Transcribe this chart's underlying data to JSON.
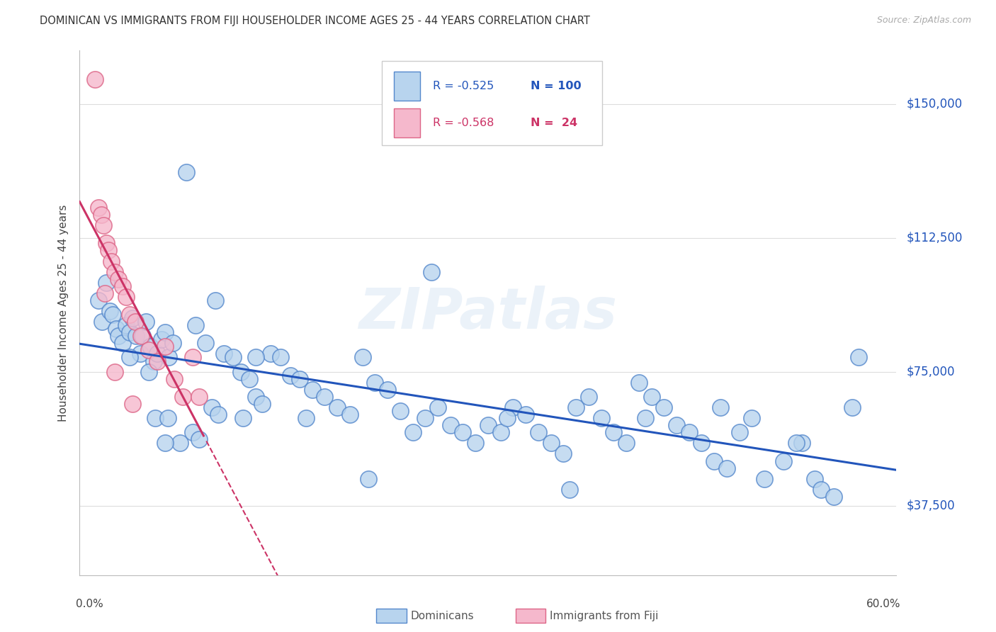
{
  "title": "DOMINICAN VS IMMIGRANTS FROM FIJI HOUSEHOLDER INCOME AGES 25 - 44 YEARS CORRELATION CHART",
  "source": "Source: ZipAtlas.com",
  "ylabel": "Householder Income Ages 25 - 44 years",
  "ytick_values": [
    37500,
    75000,
    112500,
    150000
  ],
  "ytick_labels": [
    "$37,500",
    "$75,000",
    "$112,500",
    "$150,000"
  ],
  "watermark": "ZIPatlas",
  "legend_blue_r": "-0.525",
  "legend_blue_n": "100",
  "legend_pink_r": "-0.568",
  "legend_pink_n": " 24",
  "legend_label_blue": "Dominicans",
  "legend_label_pink": "Immigrants from Fiji",
  "blue_fill": "#b8d4ee",
  "blue_edge": "#5588cc",
  "pink_fill": "#f5b8cc",
  "pink_edge": "#dd6688",
  "blue_line": "#2255bb",
  "pink_line": "#cc3366",
  "bg_color": "#ffffff",
  "grid_color": "#dddddd",
  "xmin": 0.0,
  "xmax": 62.0,
  "ymin": 18000,
  "ymax": 165000,
  "dom_x": [
    0.5,
    0.8,
    1.1,
    1.4,
    1.6,
    1.9,
    2.1,
    2.4,
    2.7,
    3.0,
    3.2,
    3.5,
    3.8,
    4.0,
    4.3,
    4.6,
    4.9,
    5.2,
    5.5,
    5.8,
    6.1,
    6.4,
    7.5,
    8.2,
    9.0,
    9.8,
    10.5,
    11.2,
    11.8,
    12.5,
    13.0,
    13.5,
    14.2,
    15.0,
    15.8,
    16.5,
    17.5,
    18.5,
    19.5,
    20.5,
    21.5,
    22.5,
    23.5,
    24.5,
    25.5,
    26.5,
    27.5,
    28.5,
    29.5,
    30.5,
    31.5,
    32.5,
    33.5,
    34.5,
    35.5,
    36.5,
    37.5,
    38.5,
    39.5,
    40.5,
    41.5,
    42.5,
    43.5,
    44.5,
    45.5,
    46.5,
    47.5,
    48.5,
    49.5,
    50.5,
    51.5,
    52.5,
    53.5,
    55.0,
    56.5,
    57.5,
    58.0,
    59.0,
    60.5,
    61.0,
    4.5,
    5.0,
    6.0,
    7.0,
    8.0,
    9.5,
    10.0,
    13.0,
    17.0,
    22.0,
    27.0,
    33.0,
    38.0,
    44.0,
    50.0,
    56.0,
    3.0,
    5.8,
    8.5,
    12.0
  ],
  "dom_y": [
    95000,
    89000,
    100000,
    92000,
    91000,
    87000,
    85000,
    83000,
    88000,
    86000,
    90000,
    85000,
    80000,
    85000,
    89000,
    82000,
    78000,
    80000,
    84000,
    86000,
    79000,
    83000,
    131000,
    88000,
    83000,
    95000,
    80000,
    79000,
    75000,
    73000,
    68000,
    66000,
    80000,
    79000,
    74000,
    73000,
    70000,
    68000,
    65000,
    63000,
    79000,
    72000,
    70000,
    64000,
    58000,
    62000,
    65000,
    60000,
    58000,
    55000,
    60000,
    58000,
    65000,
    63000,
    58000,
    55000,
    52000,
    65000,
    68000,
    62000,
    58000,
    55000,
    72000,
    68000,
    65000,
    60000,
    58000,
    55000,
    50000,
    48000,
    58000,
    62000,
    45000,
    50000,
    55000,
    45000,
    42000,
    40000,
    65000,
    79000,
    75000,
    62000,
    62000,
    55000,
    58000,
    65000,
    63000,
    79000,
    62000,
    45000,
    103000,
    62000,
    42000,
    62000,
    65000,
    55000,
    79000,
    55000,
    56000,
    62000
  ],
  "fiji_x": [
    0.2,
    0.5,
    0.7,
    0.9,
    1.1,
    1.3,
    1.5,
    1.8,
    2.1,
    2.4,
    2.7,
    3.0,
    3.4,
    3.9,
    4.5,
    5.2,
    5.8,
    6.5,
    7.2,
    8.0,
    8.5,
    1.0,
    1.8,
    3.2
  ],
  "fiji_y": [
    157000,
    121000,
    119000,
    116000,
    111000,
    109000,
    106000,
    103000,
    101000,
    99000,
    96000,
    91000,
    89000,
    85000,
    81000,
    78000,
    82000,
    73000,
    68000,
    79000,
    68000,
    97000,
    75000,
    66000
  ]
}
